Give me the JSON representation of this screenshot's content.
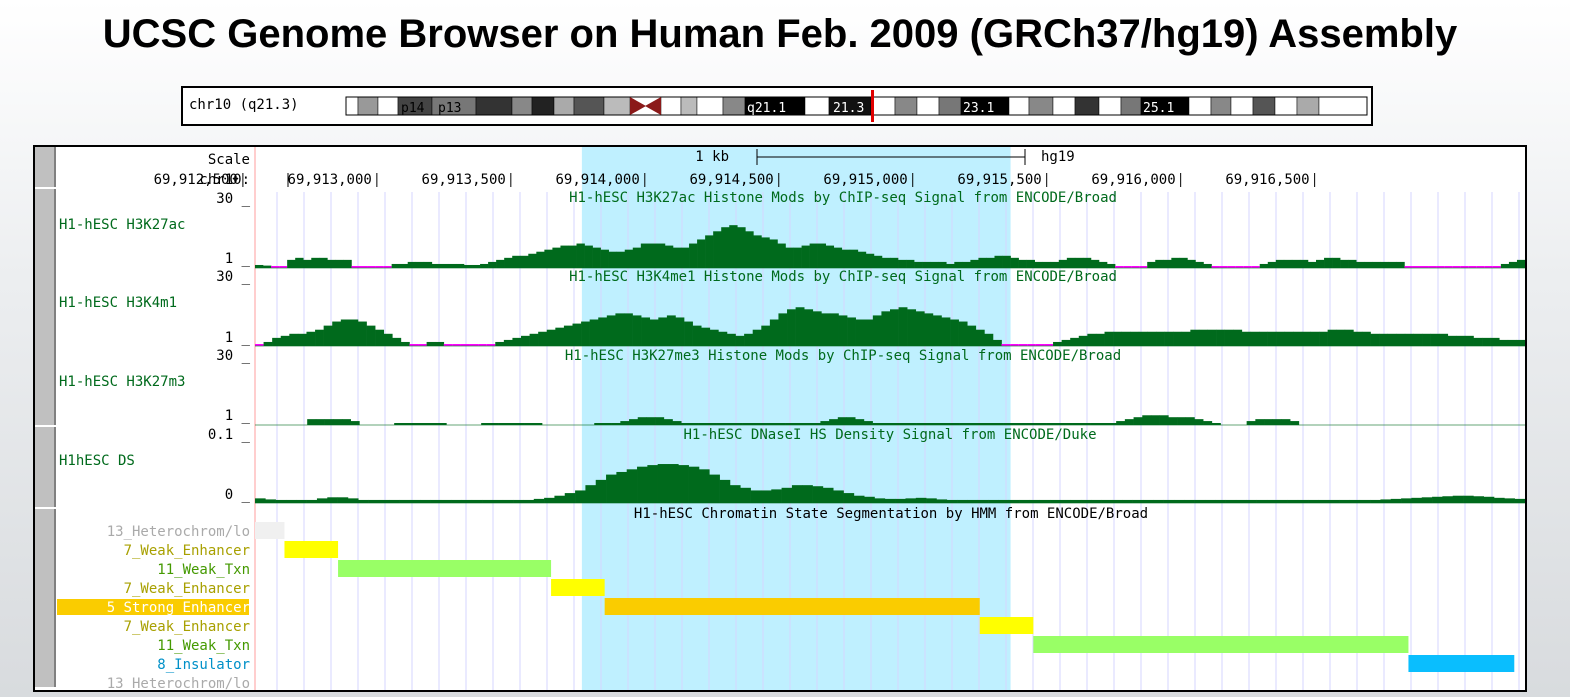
{
  "page_title": "UCSC Genome Browser on Human Feb. 2009 (GRCh37/hg19) Assembly",
  "ideogram": {
    "label": "chr10 (q21.3)",
    "bands": [
      "p14",
      "p13",
      "q21.1",
      "21.3",
      "23.1",
      "25.1"
    ]
  },
  "scale": {
    "label": "Scale",
    "bar_label": "1 kb",
    "assembly": "hg19",
    "chrom_label": "chr10:",
    "ticks": [
      "69,912,500",
      "69,913,000",
      "69,913,500",
      "69,914,000",
      "69,914,500",
      "69,915,000",
      "69,915,500",
      "69,916,000",
      "69,916,500"
    ]
  },
  "signal_tracks": [
    {
      "name": "H1-hESC H3K27ac",
      "title": "H1-hESC H3K27ac Histone Mods by ChIP-seq Signal from ENCODE/Broad",
      "max_label": "30 _",
      "min_label": "1 _",
      "max": 30,
      "min": 1,
      "values": [
        1.5,
        1.2,
        1,
        1,
        4,
        5,
        4,
        5,
        5,
        4,
        4,
        4,
        1,
        1,
        1,
        1,
        1,
        2,
        2,
        3,
        3,
        3,
        2,
        2,
        2,
        2,
        1.5,
        1.5,
        2,
        3,
        4,
        5,
        6,
        6,
        7,
        8,
        9,
        10,
        11,
        11,
        12,
        11,
        10,
        9,
        8,
        8,
        9,
        10,
        12,
        12,
        12,
        11,
        10,
        10,
        12,
        14,
        16,
        18,
        20,
        21,
        20,
        18,
        16,
        15,
        14,
        12,
        10,
        10,
        11,
        12,
        12,
        11,
        10,
        9,
        9,
        8,
        7,
        6,
        5,
        5,
        4,
        4,
        3,
        3,
        3,
        3,
        2,
        3,
        3,
        4,
        5,
        5,
        6,
        6,
        5,
        4,
        4,
        3,
        3,
        3,
        4,
        5,
        5,
        5,
        4,
        3,
        2,
        1,
        1,
        1,
        1,
        3,
        4,
        4,
        5,
        5,
        4,
        3,
        2,
        1,
        1,
        1,
        1,
        1,
        1,
        2,
        3,
        4,
        4,
        4,
        4,
        3,
        4,
        5,
        5,
        4,
        4,
        3,
        3,
        3,
        3,
        3,
        3,
        1,
        1,
        1,
        1,
        1,
        1,
        1,
        1,
        1,
        1,
        1,
        1,
        2,
        3,
        4
      ]
    },
    {
      "name": "H1-hESC H3K4m1",
      "title": "H1-hESC H3K4me1 Histone Mods by ChIP-seq Signal from ENCODE/Broad",
      "max_label": "30 _",
      "min_label": "1 _",
      "max": 30,
      "min": 1,
      "values": [
        1,
        2,
        4,
        5,
        6,
        6,
        7,
        8,
        10,
        12,
        13,
        13,
        12,
        10,
        8,
        6,
        4,
        2,
        1,
        1,
        2,
        2,
        1,
        1,
        1,
        1,
        1,
        1,
        2,
        3,
        4,
        5,
        6,
        7,
        8,
        9,
        10,
        11,
        12,
        13,
        14,
        15,
        16,
        16,
        15,
        14,
        13,
        14,
        15,
        14,
        12,
        10,
        9,
        8,
        7,
        6,
        5,
        6,
        8,
        10,
        13,
        16,
        18,
        19,
        18,
        17,
        16,
        16,
        15,
        14,
        13,
        13,
        15,
        17,
        18,
        19,
        18,
        17,
        16,
        15,
        14,
        13,
        12,
        10,
        8,
        6,
        3,
        1,
        1,
        1,
        1,
        1,
        1,
        2,
        3,
        4,
        5,
        6,
        6,
        7,
        7,
        7,
        7,
        7,
        7,
        7,
        7,
        7,
        7,
        8,
        8,
        8,
        8,
        8,
        8,
        7,
        7,
        7,
        7,
        7,
        7,
        7,
        7,
        7,
        7,
        8,
        8,
        8,
        7,
        7,
        6,
        6,
        6,
        6,
        6,
        6,
        6,
        6,
        6,
        5,
        5,
        5,
        4,
        4,
        4,
        3,
        3,
        3
      ]
    },
    {
      "name": "H1-hESC H3K27m3",
      "title": "H1-hESC H3K27me3 Histone Mods by ChIP-seq Signal from ENCODE/Broad",
      "max_label": "30 _",
      "min_label": "1 _",
      "max": 30,
      "min": 1,
      "values": [
        0,
        0,
        0,
        0,
        0,
        0,
        3,
        3,
        3,
        3,
        3,
        2,
        0,
        0,
        0,
        0,
        1,
        1,
        1,
        1,
        1,
        1,
        0,
        0,
        0,
        0,
        1,
        1,
        1,
        1,
        1,
        1,
        1,
        0,
        0,
        0,
        0,
        0,
        0,
        1,
        1,
        1,
        2,
        3,
        4,
        4,
        4,
        3,
        2,
        1,
        1,
        1,
        1,
        1,
        1,
        1,
        1,
        1,
        1,
        1,
        1,
        1,
        1,
        1,
        1,
        2,
        3,
        4,
        4,
        3,
        2,
        1,
        1,
        1,
        1,
        1,
        1,
        1,
        1,
        1,
        1,
        1,
        1,
        1,
        1,
        1,
        1,
        1,
        1,
        1,
        1,
        1,
        1,
        1,
        1,
        1,
        1,
        1,
        1,
        2,
        3,
        4,
        5,
        5,
        5,
        4,
        4,
        4,
        3,
        2,
        1,
        0,
        0,
        0,
        2,
        3,
        3,
        3,
        3,
        2,
        0,
        0,
        0,
        0,
        0,
        0,
        0,
        0,
        0,
        0,
        0,
        0,
        0,
        0,
        0,
        0,
        0,
        0,
        0,
        0,
        0,
        0,
        0,
        0,
        0,
        0
      ]
    },
    {
      "name": "H1hESC DS",
      "title": "H1-hESC DNaseI HS Density Signal from ENCODE/Duke",
      "max_label": "0.1 _",
      "min_label": "0 _",
      "max": 0.1,
      "min": 0,
      "values": [
        0.005,
        0.003,
        0.002,
        0.002,
        0.002,
        0.002,
        0.005,
        0.007,
        0.007,
        0.005,
        0.002,
        0.002,
        0.002,
        0.002,
        0.002,
        0.002,
        0.002,
        0.002,
        0.002,
        0.002,
        0.002,
        0.002,
        0.002,
        0.002,
        0.002,
        0.002,
        0.002,
        0.004,
        0.006,
        0.01,
        0.015,
        0.02,
        0.03,
        0.04,
        0.05,
        0.055,
        0.06,
        0.065,
        0.068,
        0.07,
        0.07,
        0.068,
        0.065,
        0.06,
        0.05,
        0.04,
        0.03,
        0.025,
        0.02,
        0.02,
        0.022,
        0.025,
        0.03,
        0.03,
        0.028,
        0.025,
        0.02,
        0.015,
        0.01,
        0.008,
        0.005,
        0.004,
        0.004,
        0.005,
        0.006,
        0.005,
        0.003,
        0.002,
        0.002,
        0.002,
        0.002,
        0.002,
        0.002,
        0.002,
        0.002,
        0.002,
        0.002,
        0.002,
        0.002,
        0.002,
        0.002,
        0.002,
        0.002,
        0.002,
        0.002,
        0.002,
        0.002,
        0.002,
        0.002,
        0.002,
        0.002,
        0.002,
        0.002,
        0.002,
        0.002,
        0.002,
        0.002,
        0.002,
        0.002,
        0.002,
        0.002,
        0.002,
        0.002,
        0.002,
        0.002,
        0.002,
        0.002,
        0.002,
        0.002,
        0.003,
        0.004,
        0.005,
        0.006,
        0.007,
        0.008,
        0.009,
        0.01,
        0.01,
        0.009,
        0.008,
        0.006,
        0.005,
        0.004
      ]
    }
  ],
  "segmentation": {
    "title": "H1-hESC Chromatin State Segmentation by HMM from ENCODE/Broad",
    "rows": [
      {
        "label": "13_Heterochrom/lo",
        "color": "#f0f0f0",
        "label_color": "#aaaaaa",
        "start": 69912060,
        "end": 69912170
      },
      {
        "label": "7_Weak_Enhancer",
        "color": "#ffff00",
        "label_color": "#a8a000",
        "start": 69912170,
        "end": 69912370
      },
      {
        "label": "11_Weak_Txn",
        "color": "#99ff66",
        "label_color": "#449900",
        "start": 69912370,
        "end": 69913165
      },
      {
        "label": "7_Weak_Enhancer",
        "color": "#ffff00",
        "label_color": "#a8a000",
        "start": 69913165,
        "end": 69913365
      },
      {
        "label": "5_Strong_Enhancer",
        "color": "#facc00",
        "label_color": "#ffffff",
        "label_bg": "#facc00",
        "start": 69913365,
        "end": 69914765
      },
      {
        "label": "7_Weak_Enhancer",
        "color": "#ffff00",
        "label_color": "#a8a000",
        "start": 69914765,
        "end": 69914965
      },
      {
        "label": "11_Weak_Txn",
        "color": "#99ff66",
        "label_color": "#449900",
        "start": 69914965,
        "end": 69916365
      },
      {
        "label": "8_Insulator",
        "color": "#0abefe",
        "label_color": "#0090c8",
        "start": 69916365,
        "end": 69916760
      },
      {
        "label": "13_Heterochrom/lo",
        "color": "#f0f0f0",
        "label_color": "#aaaaaa",
        "start": 69916760,
        "end": 69916760
      }
    ]
  },
  "view": {
    "start": 69912060,
    "end": 69916800,
    "highlight_start": 69913280,
    "highlight_end": 69914880
  },
  "colors": {
    "signal": "#006a1c",
    "gap": "#ff00ff",
    "highlight": "#bff0ff",
    "title_text": "#006a1c"
  }
}
